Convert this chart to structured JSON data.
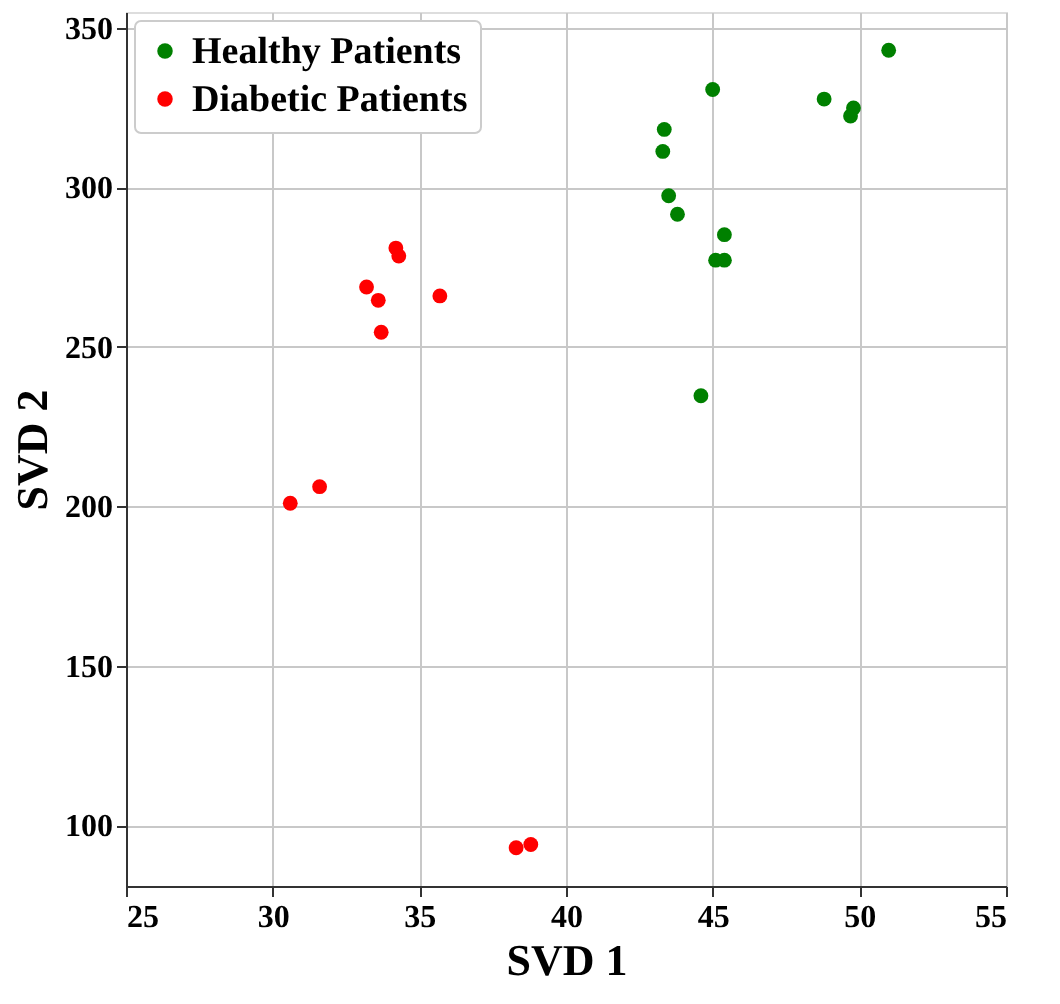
{
  "chart_data": {
    "type": "scatter",
    "xlabel": "SVD 1",
    "ylabel": "SVD 2",
    "xlim": [
      25,
      55
    ],
    "xticks": [
      25,
      30,
      35,
      40,
      45,
      50,
      55
    ],
    "ylim": [
      81,
      355
    ],
    "yticks": [
      100,
      150,
      200,
      250,
      300,
      350
    ],
    "grid": true,
    "legend": "top left",
    "marker": "circle",
    "series": [
      {
        "name": "Healthy Patients",
        "color": "#008000",
        "x": [
          51.0,
          45.0,
          48.8,
          49.8,
          49.7,
          43.35,
          43.3,
          43.5,
          43.8,
          45.4,
          45.1,
          45.4,
          44.6
        ],
        "values": [
          343,
          330.7,
          327.7,
          324.9,
          322.4,
          318.2,
          311.3,
          297.4,
          291.6,
          285.2,
          277.2,
          277.2,
          234.7
        ]
      },
      {
        "name": "Diabetic Patients",
        "color": "#ff0000",
        "x": [
          34.2,
          34.3,
          33.2,
          33.6,
          33.7,
          35.7,
          31.6,
          30.6,
          38.3,
          38.8
        ],
        "values": [
          281,
          278.5,
          268.8,
          264.6,
          254.6,
          266.0,
          206.2,
          201.0,
          93.0,
          94.0
        ]
      }
    ]
  }
}
